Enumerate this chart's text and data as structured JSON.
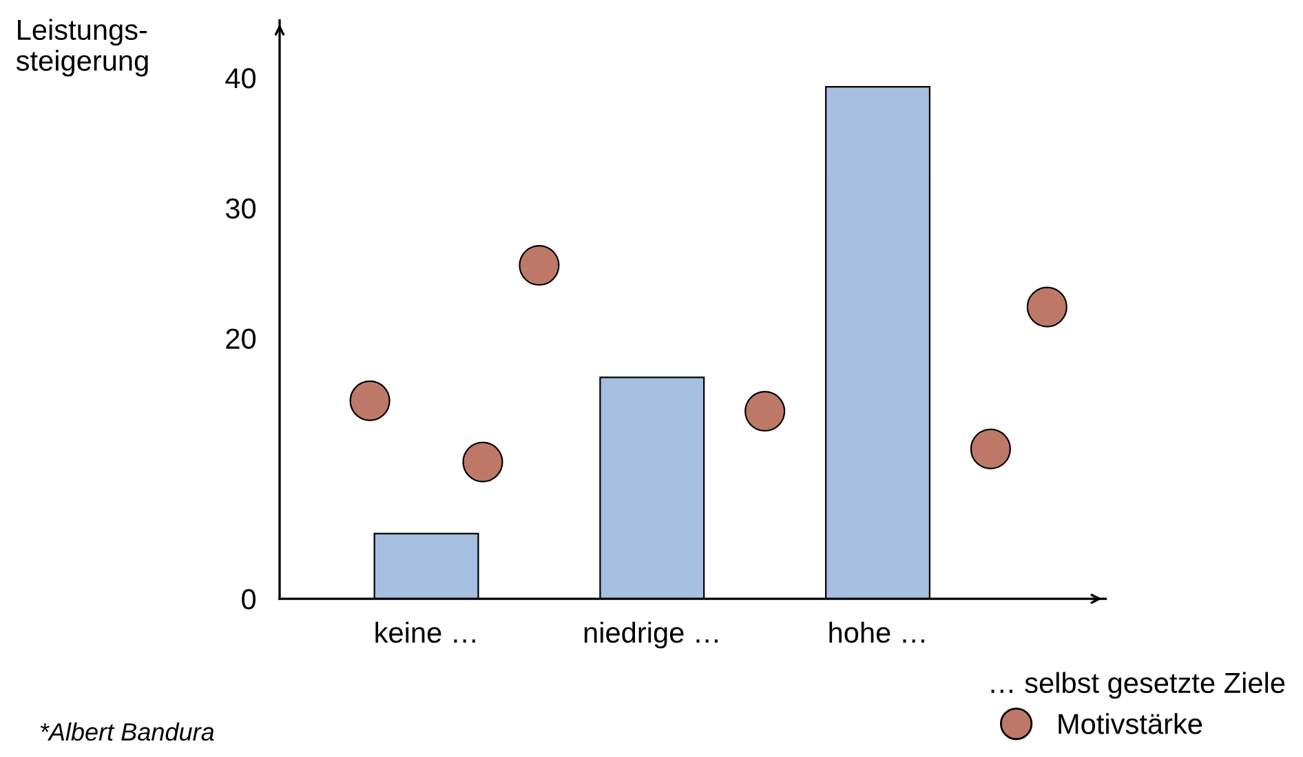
{
  "chart_data": {
    "type": "bar",
    "ylabel": "Leistungs-\nsteigerung",
    "legend_title": "… selbst gesetzte Ziele",
    "categories": [
      null,
      "keine …",
      null,
      null,
      null,
      "niedrige …",
      null,
      null,
      null,
      "hohe …",
      null,
      null,
      null
    ],
    "ylim": [
      0,
      44.4
    ],
    "yticks": [
      0,
      20,
      30,
      40
    ],
    "series": [
      {
        "color": "#a6bfe0",
        "values": [
          null,
          5.0,
          null,
          null,
          null,
          17.0,
          null,
          null,
          null,
          39.3,
          null,
          null,
          null
        ]
      },
      {
        "type": "scatter",
        "name": "Motivstärke",
        "color": "#be7867",
        "values": [
          15.2,
          null,
          10.5,
          25.6,
          null,
          null,
          null,
          14.4,
          null,
          null,
          null,
          11.5,
          22.4
        ]
      }
    ],
    "marker": "circle",
    "grid": false,
    "legend": "bottom right",
    "annotations": [
      "*Albert Bandura"
    ]
  }
}
